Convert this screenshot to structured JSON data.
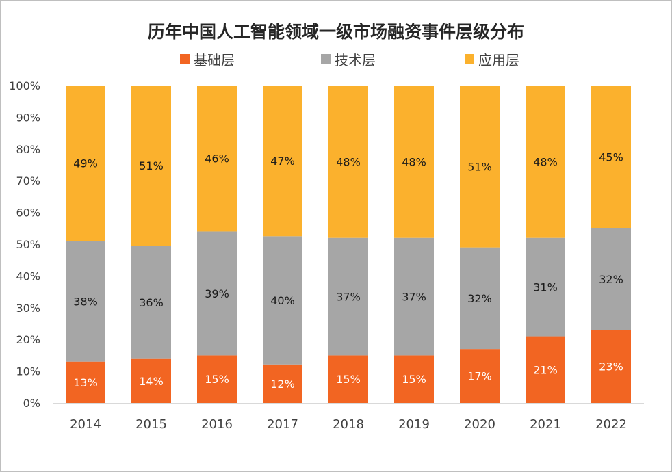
{
  "chart_data": {
    "type": "bar",
    "stacked": true,
    "title": "历年中国人工智能领域一级市场融资事件层级分布",
    "categories": [
      "2014",
      "2015",
      "2016",
      "2017",
      "2018",
      "2019",
      "2020",
      "2021",
      "2022"
    ],
    "series": [
      {
        "name": "基础层",
        "color": "#f26522",
        "values": [
          13,
          14,
          15,
          12,
          15,
          15,
          17,
          21,
          23
        ],
        "labels": [
          "13%",
          "14%",
          "15%",
          "12%",
          "15%",
          "15%",
          "17%",
          "21%",
          "23%"
        ]
      },
      {
        "name": "技术层",
        "color": "#a6a6a6",
        "values": [
          38,
          36,
          39,
          40,
          37,
          37,
          32,
          31,
          32
        ],
        "labels": [
          "38%",
          "36%",
          "39%",
          "40%",
          "37%",
          "37%",
          "32%",
          "31%",
          "32%"
        ]
      },
      {
        "name": "应用层",
        "color": "#fbb12d",
        "values": [
          49,
          51,
          46,
          47,
          48,
          48,
          51,
          48,
          45
        ],
        "labels": [
          "49%",
          "51%",
          "46%",
          "47%",
          "48%",
          "48%",
          "51%",
          "48%",
          "45%"
        ]
      }
    ],
    "ylim": [
      0,
      100
    ],
    "yticks": [
      "0%",
      "10%",
      "20%",
      "30%",
      "40%",
      "50%",
      "60%",
      "70%",
      "80%",
      "90%",
      "100%"
    ],
    "xlabel": "",
    "ylabel": "",
    "legend_position": "top",
    "grid": false
  }
}
